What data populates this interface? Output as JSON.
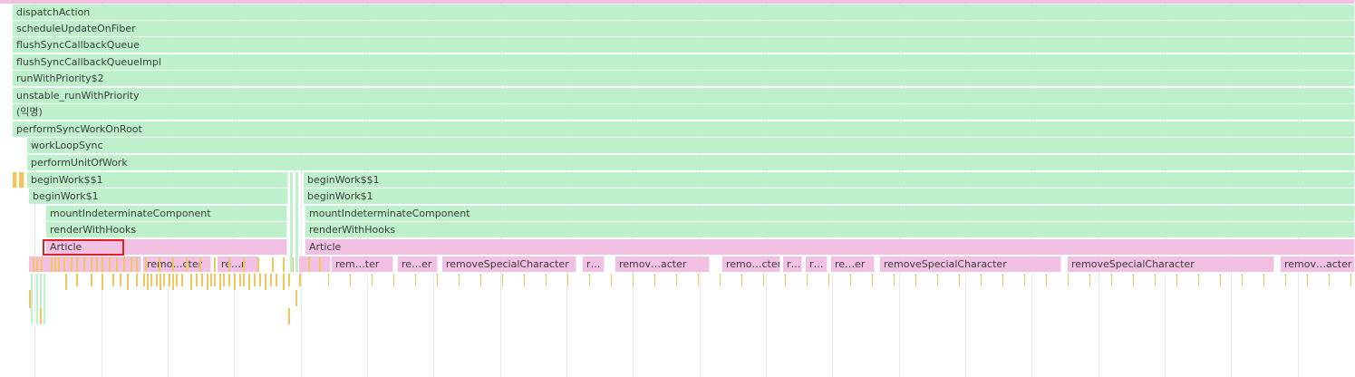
{
  "flame_chart": {
    "stack_left": [
      "dispatchAction",
      "scheduleUpdateOnFiber",
      "flushSyncCallbackQueue",
      "flushSyncCallbackQueueImpl",
      "runWithPriority$2",
      "unstable_runWithPriority",
      "(익명)",
      "performSyncWorkOnRoot",
      "workLoopSync",
      "performUnitOfWork",
      "beginWork$$1",
      "beginWork$1",
      "mountIndeterminateComponent",
      "renderWithHooks",
      "Article"
    ],
    "stack_right": [
      "beginWork$$1",
      "beginWork$1",
      "mountIndeterminateComponent",
      "renderWithHooks",
      "Article"
    ],
    "remove_row": [
      "remo…cter",
      "re…r",
      "rem…ter",
      "re…er",
      "removeSpecialCharacter",
      "r…",
      "remov…acter",
      "remo…cter",
      "r…",
      "r…",
      "re…er",
      "removeSpecialCharacter",
      "removeSpecialCharacter",
      "remov…acter"
    ],
    "highlighted_frame": "Article",
    "colors": {
      "script_green": "#bdf0cb",
      "render_pink": "#f1c0e2",
      "idle_yellow": "#f0c75f",
      "highlight_red": "#e02020"
    }
  }
}
